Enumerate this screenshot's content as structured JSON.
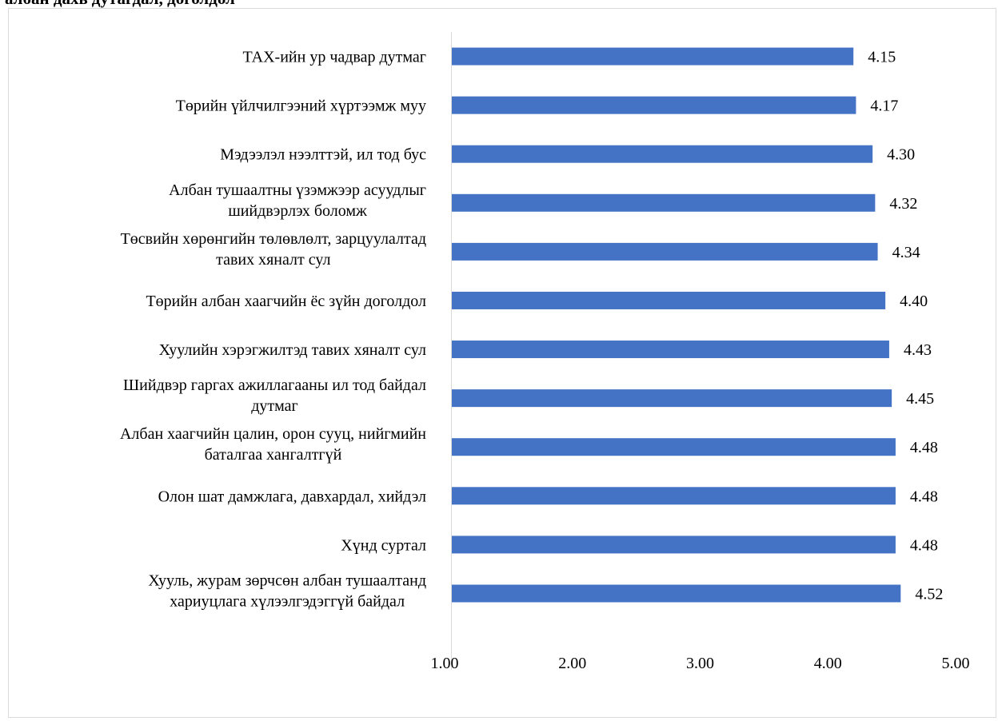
{
  "header": {
    "cut_title": "албан дахь дутагдал, доголдол"
  },
  "chart_data": {
    "type": "bar",
    "orientation": "horizontal",
    "title": "",
    "xlabel": "",
    "ylabel": "",
    "xlim": [
      1,
      5
    ],
    "xticks": [
      "1.00",
      "2.00",
      "3.00",
      "4.00",
      "5.00"
    ],
    "grid": false,
    "color": "#4472c4",
    "categories": [
      [
        "ТАХ-ийн ур чадвар дутмаг"
      ],
      [
        "Төрийн үйлчилгээний хүртээмж муу"
      ],
      [
        "Мэдээлэл нээлттэй, ил тод бус"
      ],
      [
        "Албан тушаалтны үзэмжээр асуудлыг",
        "шийдвэрлэх боломж"
      ],
      [
        "Төсвийн хөрөнгийн төлөвлөлт, зарцуулалтад",
        "тавих хяналт сул"
      ],
      [
        "Төрийн албан хаагчийн ёс зүйн доголдол"
      ],
      [
        "Хуулийн хэрэгжилтэд тавих хяналт сул"
      ],
      [
        "Шийдвэр гаргах ажиллагааны ил тод байдал",
        "дутмаг"
      ],
      [
        "Албан хаагчийн цалин, орон сууц, нийгмийн",
        "баталгаа хангалтгүй"
      ],
      [
        "Олон шат дамжлага, давхардал, хийдэл"
      ],
      [
        "Хүнд суртал"
      ],
      [
        "Хууль, журам зөрчсөн албан тушаалтанд",
        "хариуцлага хүлээлгэдэггүй байдал"
      ]
    ],
    "values": [
      4.15,
      4.17,
      4.3,
      4.32,
      4.34,
      4.4,
      4.43,
      4.45,
      4.48,
      4.48,
      4.48,
      4.52
    ],
    "value_labels": [
      "4.15",
      "4.17",
      "4.30",
      "4.32",
      "4.34",
      "4.40",
      "4.43",
      "4.45",
      "4.48",
      "4.48",
      "4.48",
      "4.52"
    ]
  }
}
